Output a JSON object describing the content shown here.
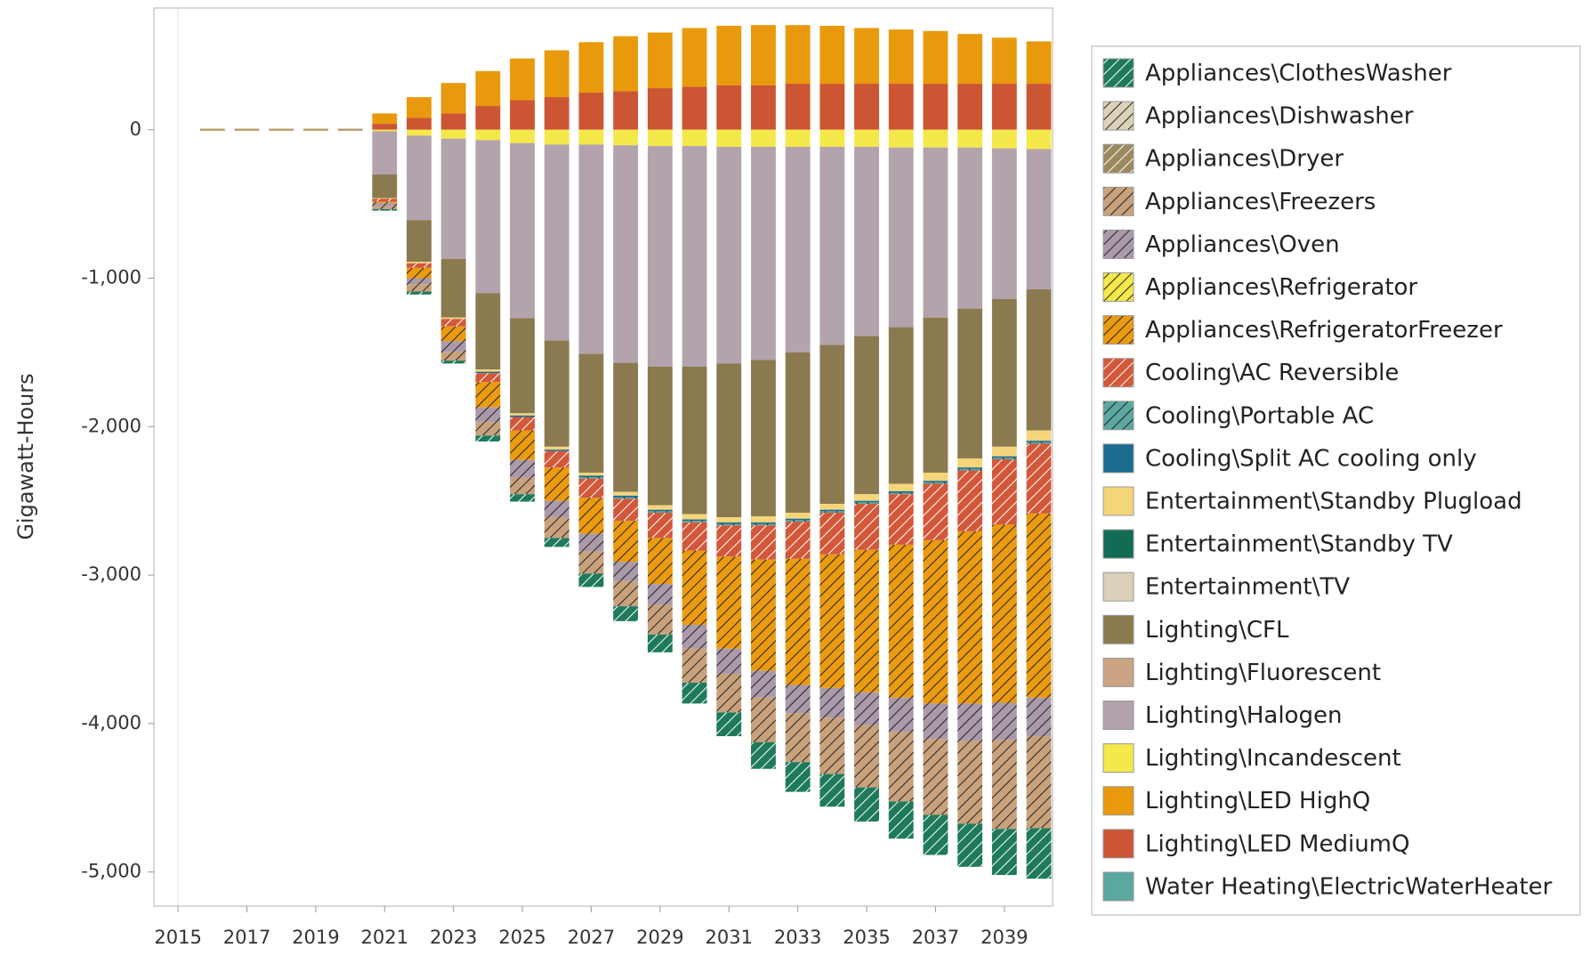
{
  "chart_data": {
    "type": "stacked-bar",
    "y_label": "Gigawatt-Hours",
    "x": [
      2016,
      2017,
      2018,
      2019,
      2020,
      2021,
      2022,
      2023,
      2024,
      2025,
      2026,
      2027,
      2028,
      2029,
      2030,
      2031,
      2032,
      2033,
      2034,
      2035,
      2036,
      2037,
      2038,
      2039,
      2040
    ],
    "xlim": [
      2014.3,
      2040.4
    ],
    "xticks": [
      2015,
      2017,
      2019,
      2021,
      2023,
      2025,
      2027,
      2029,
      2031,
      2033,
      2035,
      2037,
      2039
    ],
    "ylim": [
      -5230,
      820
    ],
    "yticks": [
      0,
      {
        "value": -1000,
        "label": "-1,000"
      },
      {
        "value": -2000,
        "label": "-2,000"
      },
      {
        "value": -3000,
        "label": "-3,000"
      },
      {
        "value": -4000,
        "label": "-4,000"
      },
      {
        "value": -5000,
        "label": "-5,000"
      }
    ],
    "legend": "right",
    "series": [
      {
        "name": "Appliances\\ClothesWasher",
        "color": "#1f7a5c",
        "hatch": true,
        "values": [
          0,
          0,
          0,
          0,
          0,
          -10,
          -20,
          -20,
          -40,
          -50,
          -60,
          -90,
          -100,
          -120,
          -140,
          -160,
          -180,
          -200,
          -220,
          -230,
          -250,
          -270,
          -290,
          -310,
          -340
        ]
      },
      {
        "name": "Appliances\\Dishwasher",
        "color": "#dcd2b8",
        "hatch": true,
        "values": [
          0,
          0,
          0,
          0,
          0,
          0,
          0,
          0,
          0,
          0,
          0,
          0,
          0,
          0,
          0,
          0,
          0,
          0,
          0,
          0,
          0,
          0,
          0,
          0,
          0
        ]
      },
      {
        "name": "Appliances\\Dryer",
        "color": "#9a8a5e",
        "hatch": true,
        "values": [
          0,
          0,
          0,
          0,
          0,
          0,
          0,
          0,
          0,
          0,
          0,
          0,
          0,
          0,
          0,
          0,
          0,
          0,
          0,
          0,
          0,
          0,
          0,
          0,
          0
        ]
      },
      {
        "name": "Appliances\\Freezers",
        "color": "#c9a27c",
        "hatch": true,
        "values": [
          0,
          0,
          0,
          0,
          0,
          -20,
          -50,
          -60,
          -90,
          -110,
          -140,
          -150,
          -170,
          -200,
          -230,
          -260,
          -300,
          -330,
          -380,
          -420,
          -470,
          -510,
          -560,
          -600,
          -620
        ]
      },
      {
        "name": "Appliances\\Oven",
        "color": "#aa9aaa",
        "hatch": true,
        "values": [
          0,
          0,
          0,
          0,
          0,
          -20,
          -40,
          -70,
          -100,
          -120,
          -110,
          -120,
          -130,
          -140,
          -160,
          -170,
          -180,
          -190,
          -200,
          -220,
          -230,
          -240,
          -250,
          -250,
          -260
        ]
      },
      {
        "name": "Appliances\\Refrigerator",
        "color": "#f5e84a",
        "hatch": true,
        "values": [
          0,
          0,
          0,
          0,
          0,
          0,
          0,
          0,
          0,
          0,
          0,
          0,
          0,
          0,
          0,
          0,
          0,
          0,
          0,
          0,
          0,
          0,
          0,
          0,
          0
        ]
      },
      {
        "name": "Appliances\\RefrigeratorFreezer",
        "color": "#eb9b10",
        "hatch": true,
        "values": [
          0,
          0,
          0,
          0,
          0,
          -10,
          -70,
          -100,
          -170,
          -200,
          -225,
          -240,
          -275,
          -310,
          -500,
          -620,
          -750,
          -850,
          -900,
          -960,
          -1030,
          -1100,
          -1160,
          -1200,
          -1240
        ]
      },
      {
        "name": "Cooling\\AC Reversible",
        "color": "#d2583a",
        "hatch": true,
        "values": [
          0,
          0,
          0,
          0,
          0,
          -20,
          -30,
          -50,
          -60,
          -90,
          -110,
          -130,
          -150,
          -170,
          -190,
          -210,
          -230,
          -250,
          -280,
          -310,
          -340,
          -380,
          -410,
          -440,
          -470
        ]
      },
      {
        "name": "Cooling\\Portable AC",
        "color": "#5aa8a0",
        "hatch": true,
        "values": [
          0,
          0,
          0,
          0,
          0,
          0,
          0,
          0,
          0,
          0,
          0,
          -10,
          -10,
          -10,
          -10,
          -10,
          -10,
          -10,
          -10,
          -10,
          -10,
          -10,
          -10,
          -10,
          -10
        ]
      },
      {
        "name": "Cooling\\Split AC cooling only",
        "color": "#1b6b8f",
        "hatch": false,
        "values": [
          0,
          0,
          0,
          0,
          0,
          0,
          0,
          0,
          -10,
          -10,
          -10,
          -10,
          -10,
          -10,
          -10,
          -10,
          -10,
          -10,
          -10,
          -10,
          -10,
          -10,
          -10,
          -10,
          -10
        ]
      },
      {
        "name": "Entertainment\\Standby Plugload",
        "color": "#f5d57a",
        "hatch": false,
        "values": [
          0,
          0,
          0,
          0,
          0,
          -5,
          -10,
          -10,
          -15,
          -15,
          -20,
          -20,
          -25,
          -30,
          -35,
          -35,
          -40,
          -40,
          -40,
          -45,
          -50,
          -55,
          -60,
          -65,
          -70
        ]
      },
      {
        "name": "Entertainment\\Standby TV",
        "color": "#126b55",
        "hatch": false,
        "values": [
          0,
          0,
          0,
          0,
          0,
          0,
          0,
          0,
          0,
          0,
          0,
          0,
          0,
          0,
          0,
          0,
          0,
          0,
          0,
          0,
          0,
          0,
          0,
          0,
          0
        ]
      },
      {
        "name": "Entertainment\\TV",
        "color": "#dbd0b8",
        "hatch": false,
        "values": [
          0,
          0,
          0,
          0,
          0,
          0,
          0,
          0,
          0,
          0,
          0,
          0,
          0,
          0,
          0,
          0,
          0,
          0,
          0,
          0,
          0,
          0,
          0,
          0,
          0
        ]
      },
      {
        "name": "Lighting\\CFL",
        "color": "#8b7a50",
        "hatch": false,
        "values": [
          0,
          0,
          0,
          0,
          0,
          -160,
          -280,
          -395,
          -515,
          -640,
          -715,
          -800,
          -870,
          -935,
          -995,
          -1035,
          -1055,
          -1080,
          -1070,
          -1065,
          -1055,
          -1045,
          -1010,
          -995,
          -950
        ]
      },
      {
        "name": "Lighting\\Fluorescent",
        "color": "#c9a382",
        "hatch": false,
        "values": [
          0,
          0,
          0,
          0,
          0,
          0,
          0,
          0,
          0,
          0,
          0,
          0,
          0,
          0,
          0,
          0,
          0,
          0,
          0,
          0,
          0,
          0,
          0,
          0,
          0
        ]
      },
      {
        "name": "Lighting\\Halogen",
        "color": "#b3a3ad",
        "hatch": false,
        "values": [
          0,
          0,
          0,
          0,
          0,
          -290,
          -570,
          -810,
          -1030,
          -1180,
          -1320,
          -1410,
          -1465,
          -1485,
          -1485,
          -1460,
          -1435,
          -1385,
          -1335,
          -1275,
          -1210,
          -1145,
          -1085,
          -1015,
          -945
        ]
      },
      {
        "name": "Lighting\\Incandescent",
        "color": "#f5e84a",
        "hatch": false,
        "values": [
          0,
          0,
          0,
          0,
          0,
          -10,
          -40,
          -60,
          -70,
          -90,
          -100,
          -100,
          -105,
          -110,
          -110,
          -115,
          -115,
          -115,
          -115,
          -115,
          -120,
          -120,
          -120,
          -125,
          -130
        ]
      },
      {
        "name": "Lighting\\LED HighQ",
        "color": "#e89a0c",
        "hatch": false,
        "values": [
          0,
          0,
          0,
          0,
          0,
          70,
          140,
          205,
          235,
          280,
          315,
          340,
          370,
          375,
          395,
          400,
          405,
          395,
          390,
          375,
          365,
          355,
          335,
          310,
          285
        ]
      },
      {
        "name": "Lighting\\LED MediumQ",
        "color": "#cc5533",
        "hatch": false,
        "values": [
          0,
          0,
          0,
          0,
          0,
          40,
          80,
          110,
          160,
          200,
          220,
          250,
          260,
          280,
          290,
          300,
          300,
          310,
          310,
          310,
          310,
          310,
          310,
          310,
          310
        ]
      },
      {
        "name": "Water Heating\\ElectricWaterHeater",
        "color": "#5aa8a0",
        "hatch": false,
        "values": [
          0,
          0,
          0,
          0,
          0,
          0,
          0,
          0,
          0,
          0,
          0,
          0,
          0,
          0,
          0,
          0,
          0,
          0,
          0,
          0,
          0,
          0,
          0,
          0,
          0
        ]
      }
    ]
  }
}
